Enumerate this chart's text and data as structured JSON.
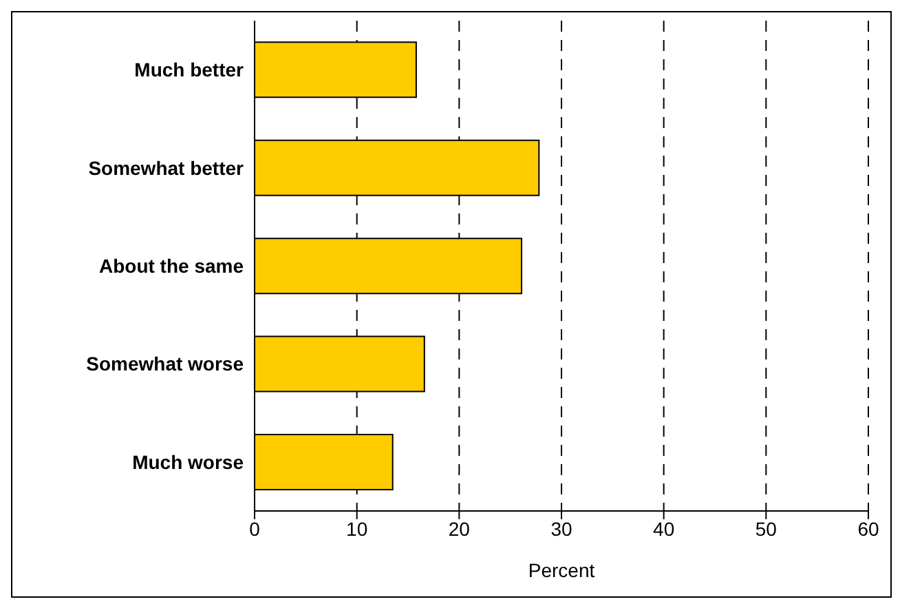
{
  "chart_data": {
    "type": "bar",
    "orientation": "horizontal",
    "xlabel": "Percent",
    "categories": [
      "Much better",
      "Somewhat better",
      "About the same",
      "Somewhat worse",
      "Much worse"
    ],
    "values": [
      15.8,
      27.8,
      26.1,
      16.6,
      13.5
    ],
    "color": "#ffcc00",
    "xlim": [
      0,
      60
    ],
    "xticks": [
      0,
      10,
      20,
      30,
      40,
      50,
      60
    ],
    "grid": "x"
  }
}
